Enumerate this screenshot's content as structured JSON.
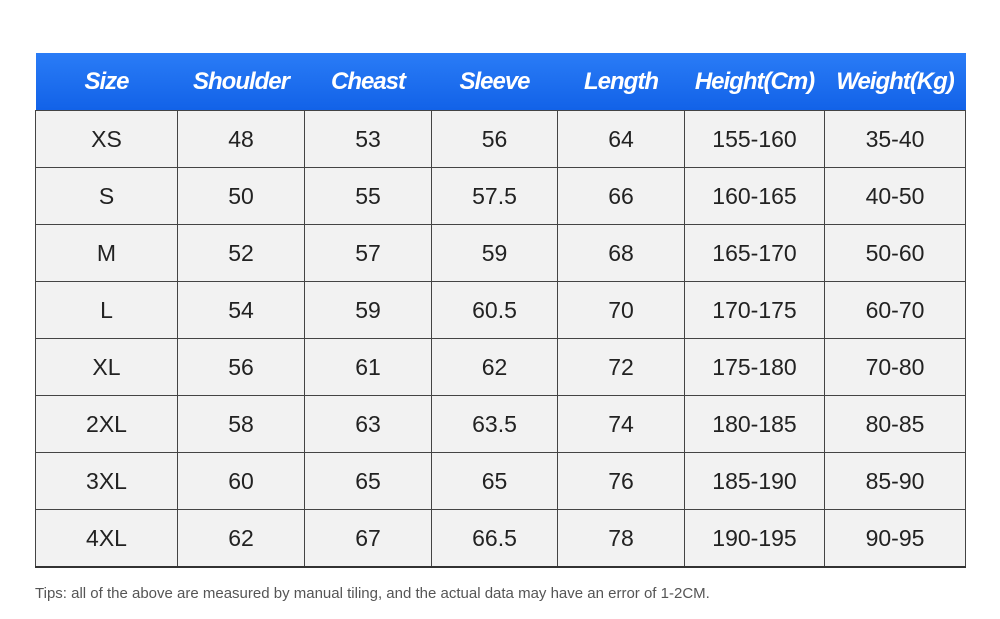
{
  "table": {
    "header": [
      "Size",
      "Shoulder",
      "Cheast",
      "Sleeve",
      "Length",
      "Height(Cm)",
      "Weight(Kg)"
    ],
    "rows": [
      [
        "XS",
        48,
        53,
        56,
        64,
        "155-160",
        "35-40"
      ],
      [
        "S",
        50,
        55,
        57.5,
        66,
        "160-165",
        "40-50"
      ],
      [
        "M",
        52,
        57,
        59,
        68,
        "165-170",
        "50-60"
      ],
      [
        "L",
        54,
        59,
        60.5,
        70,
        "170-175",
        "60-70"
      ],
      [
        "XL",
        56,
        61,
        62,
        72,
        "175-180",
        "70-80"
      ],
      [
        "2XL",
        58,
        63,
        63.5,
        74,
        "180-185",
        "80-85"
      ],
      [
        "3XL",
        60,
        65,
        65,
        76,
        "185-190",
        "85-90"
      ],
      [
        "4XL",
        62,
        67,
        66.5,
        78,
        "190-195",
        "90-95"
      ]
    ]
  },
  "tips": "Tips: all of the above are measured by manual tiling, and the actual data may have an error of 1-2CM."
}
